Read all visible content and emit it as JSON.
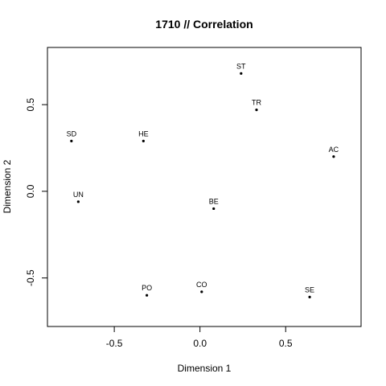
{
  "chart_data": {
    "type": "scatter",
    "title": "1710 // Correlation",
    "xlabel": "Dimension 1",
    "ylabel": "Dimension 2",
    "xlim": [
      -0.89,
      0.94
    ],
    "ylim": [
      -0.78,
      0.83
    ],
    "xticks": [
      -0.5,
      0.0,
      0.5
    ],
    "xtick_labels": [
      "-0.5",
      "0.0",
      "0.5"
    ],
    "yticks": [
      -0.5,
      0.0,
      0.5
    ],
    "ytick_labels": [
      "-0.5",
      "0.0",
      "0.5"
    ],
    "grid": false,
    "legend": "none",
    "point_color": "#000000",
    "points": [
      {
        "label": "ST",
        "x": 0.24,
        "y": 0.68
      },
      {
        "label": "TR",
        "x": 0.33,
        "y": 0.47
      },
      {
        "label": "SD",
        "x": -0.75,
        "y": 0.29
      },
      {
        "label": "HE",
        "x": -0.33,
        "y": 0.29
      },
      {
        "label": "AC",
        "x": 0.78,
        "y": 0.2
      },
      {
        "label": "UN",
        "x": -0.71,
        "y": -0.06
      },
      {
        "label": "BE",
        "x": 0.08,
        "y": -0.1
      },
      {
        "label": "PO",
        "x": -0.31,
        "y": -0.6
      },
      {
        "label": "CO",
        "x": 0.01,
        "y": -0.58
      },
      {
        "label": "SE",
        "x": 0.64,
        "y": -0.61
      }
    ]
  }
}
